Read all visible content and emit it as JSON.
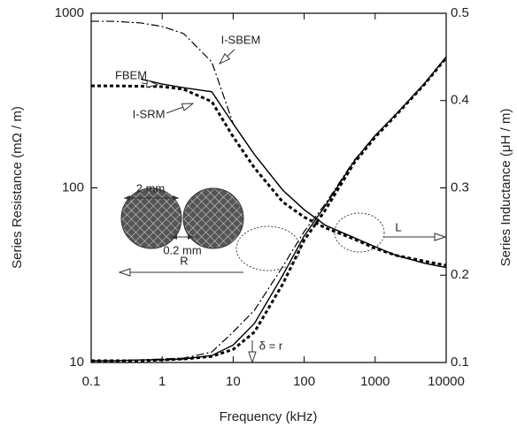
{
  "chart_data": {
    "type": "line",
    "xlabel": "Frequency (kHz)",
    "ylabel": "Series Resistance (mΩ / m)",
    "y2label": "Series Inductance (μH / m)",
    "x": [
      0.1,
      0.2,
      0.5,
      1,
      2,
      5,
      10,
      20,
      50,
      100,
      200,
      500,
      1000,
      2000,
      5000,
      10000
    ],
    "xlim": [
      0.1,
      10000
    ],
    "xticks": [
      0.1,
      1,
      10,
      100,
      1000,
      10000
    ],
    "xscale": "log",
    "ylim": [
      10,
      1000
    ],
    "yticks": [
      10,
      100,
      1000
    ],
    "yscale": "log",
    "y2lim": [
      0.1,
      0.5
    ],
    "y2ticks": [
      0.1,
      0.2,
      0.3,
      0.4,
      0.5
    ],
    "series": [
      {
        "name": "FBEM",
        "color": "#000000",
        "style": "solid",
        "values": [
          null,
          null,
          420,
          393,
          375,
          355,
          233,
          155,
          97,
          75,
          61,
          52,
          46,
          41,
          37,
          35
        ]
      },
      {
        "name": "I-SBEM",
        "color": "#000000",
        "style": "dashdot",
        "values": [
          900,
          900,
          880,
          840,
          765,
          526,
          233,
          155,
          97,
          75,
          61,
          52,
          46,
          41,
          37,
          35
        ]
      },
      {
        "name": "I-SRM",
        "color": "#000000",
        "style": "dotted",
        "values": [
          384,
          384,
          382,
          380,
          367,
          312,
          196,
          130,
          83,
          68,
          59,
          51,
          45,
          41,
          38,
          36
        ]
      },
      {
        "axis": "y2",
        "color": "#000000",
        "style": "solid",
        "values": [
          0.102,
          0.102,
          0.103,
          0.103,
          0.104,
          0.108,
          0.12,
          0.145,
          0.2,
          0.245,
          0.28,
          0.33,
          0.36,
          0.385,
          0.42,
          0.45
        ]
      },
      {
        "axis": "y2",
        "color": "#000000",
        "style": "dashdot",
        "values": [
          0.102,
          0.102,
          0.103,
          0.104,
          0.105,
          0.112,
          0.135,
          0.16,
          0.21,
          0.25,
          0.282,
          0.331,
          0.36,
          0.385,
          0.42,
          0.45
        ]
      },
      {
        "axis": "y2",
        "color": "#000000",
        "style": "dotted",
        "values": [
          0.102,
          0.102,
          0.102,
          0.103,
          0.104,
          0.107,
          0.115,
          0.135,
          0.19,
          0.24,
          0.275,
          0.328,
          0.358,
          0.384,
          0.419,
          0.449
        ]
      }
    ],
    "annotations": [
      "FBEM",
      "I-SBEM",
      "I-SRM",
      "R",
      "L",
      "δ = r",
      "2 mm",
      "0.2 mm"
    ]
  }
}
